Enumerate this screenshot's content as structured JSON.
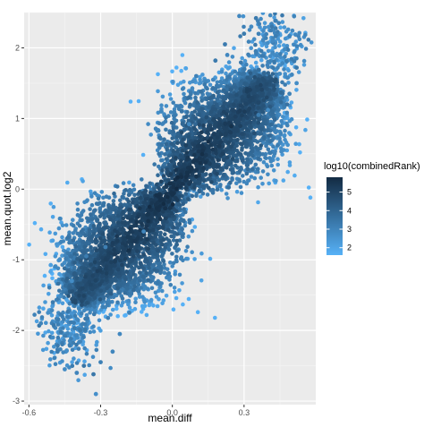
{
  "chart_data": {
    "type": "scatter",
    "xlabel": "mean.diff",
    "ylabel": "mean.quot.log2",
    "xlim": [
      -0.62,
      0.6
    ],
    "ylim": [
      -3.05,
      2.5
    ],
    "x_ticks": [
      {
        "value": -0.6,
        "label": "-0.6"
      },
      {
        "value": -0.3,
        "label": "-0.3"
      },
      {
        "value": 0.0,
        "label": "0.0"
      },
      {
        "value": 0.3,
        "label": "0.3"
      }
    ],
    "y_ticks": [
      {
        "value": 2,
        "label": "2"
      },
      {
        "value": 1,
        "label": "1"
      },
      {
        "value": 0,
        "label": "0"
      },
      {
        "value": -1,
        "label": "-1"
      },
      {
        "value": -2,
        "label": "-2"
      },
      {
        "value": -3,
        "label": "-3"
      }
    ],
    "grid": true,
    "background": "#ebebeb",
    "color_scale": {
      "title": "log10(combinedRank)",
      "min": 1.6,
      "max": 5.8,
      "low_color": "#56b1f7",
      "high_color": "#132b43",
      "ticks": [
        {
          "value": 2,
          "label": "2"
        },
        {
          "value": 3,
          "label": "3"
        },
        {
          "value": 4,
          "label": "4"
        },
        {
          "value": 5,
          "label": "5"
        }
      ]
    },
    "legend_position": "right",
    "cloud": {
      "description_of_shape": "two lobes meeting at origin",
      "upper_lobe_x_range": [
        0.0,
        0.54
      ],
      "upper_lobe_y_range": [
        0.0,
        2.45
      ],
      "lower_lobe_x_range": [
        -0.58,
        0.0
      ],
      "lower_lobe_y_range": [
        -2.95,
        0.0
      ]
    },
    "points": [
      [
        0.28,
        2.45
      ],
      [
        0.35,
        2.42
      ],
      [
        0.33,
        2.3
      ],
      [
        0.42,
        2.1
      ],
      [
        0.47,
        1.98
      ],
      [
        0.52,
        1.72
      ],
      [
        0.52,
        1.5
      ],
      [
        0.5,
        1.62
      ],
      [
        0.49,
        1.35
      ],
      [
        0.48,
        1.2
      ],
      [
        0.45,
        1.28
      ],
      [
        0.4,
        1.12
      ],
      [
        0.36,
        1.05
      ],
      [
        0.23,
        1.9
      ],
      [
        0.18,
        1.82
      ],
      [
        0.12,
        1.38
      ],
      [
        0.07,
        0.92
      ],
      [
        0.1,
        1.6
      ],
      [
        0.22,
        2.05
      ],
      [
        0.3,
        2.2
      ],
      [
        -0.55,
        -1.9
      ],
      [
        -0.52,
        -1.75
      ],
      [
        -0.5,
        -2.1
      ],
      [
        -0.48,
        -2.3
      ],
      [
        -0.45,
        -2.55
      ],
      [
        -0.4,
        -2.6
      ],
      [
        -0.37,
        -2.5
      ],
      [
        -0.33,
        -2.62
      ],
      [
        -0.3,
        -2.45
      ],
      [
        -0.32,
        -2.9
      ],
      [
        -0.25,
        -2.3
      ],
      [
        -0.22,
        -2.05
      ],
      [
        -0.18,
        -1.75
      ],
      [
        -0.42,
        -1.3
      ],
      [
        -0.47,
        -1.52
      ],
      [
        -0.5,
        -1.6
      ],
      [
        -0.36,
        -0.95
      ],
      [
        -0.28,
        -0.82
      ],
      [
        -0.12,
        -0.6
      ],
      [
        -0.08,
        -1.25
      ]
    ]
  }
}
